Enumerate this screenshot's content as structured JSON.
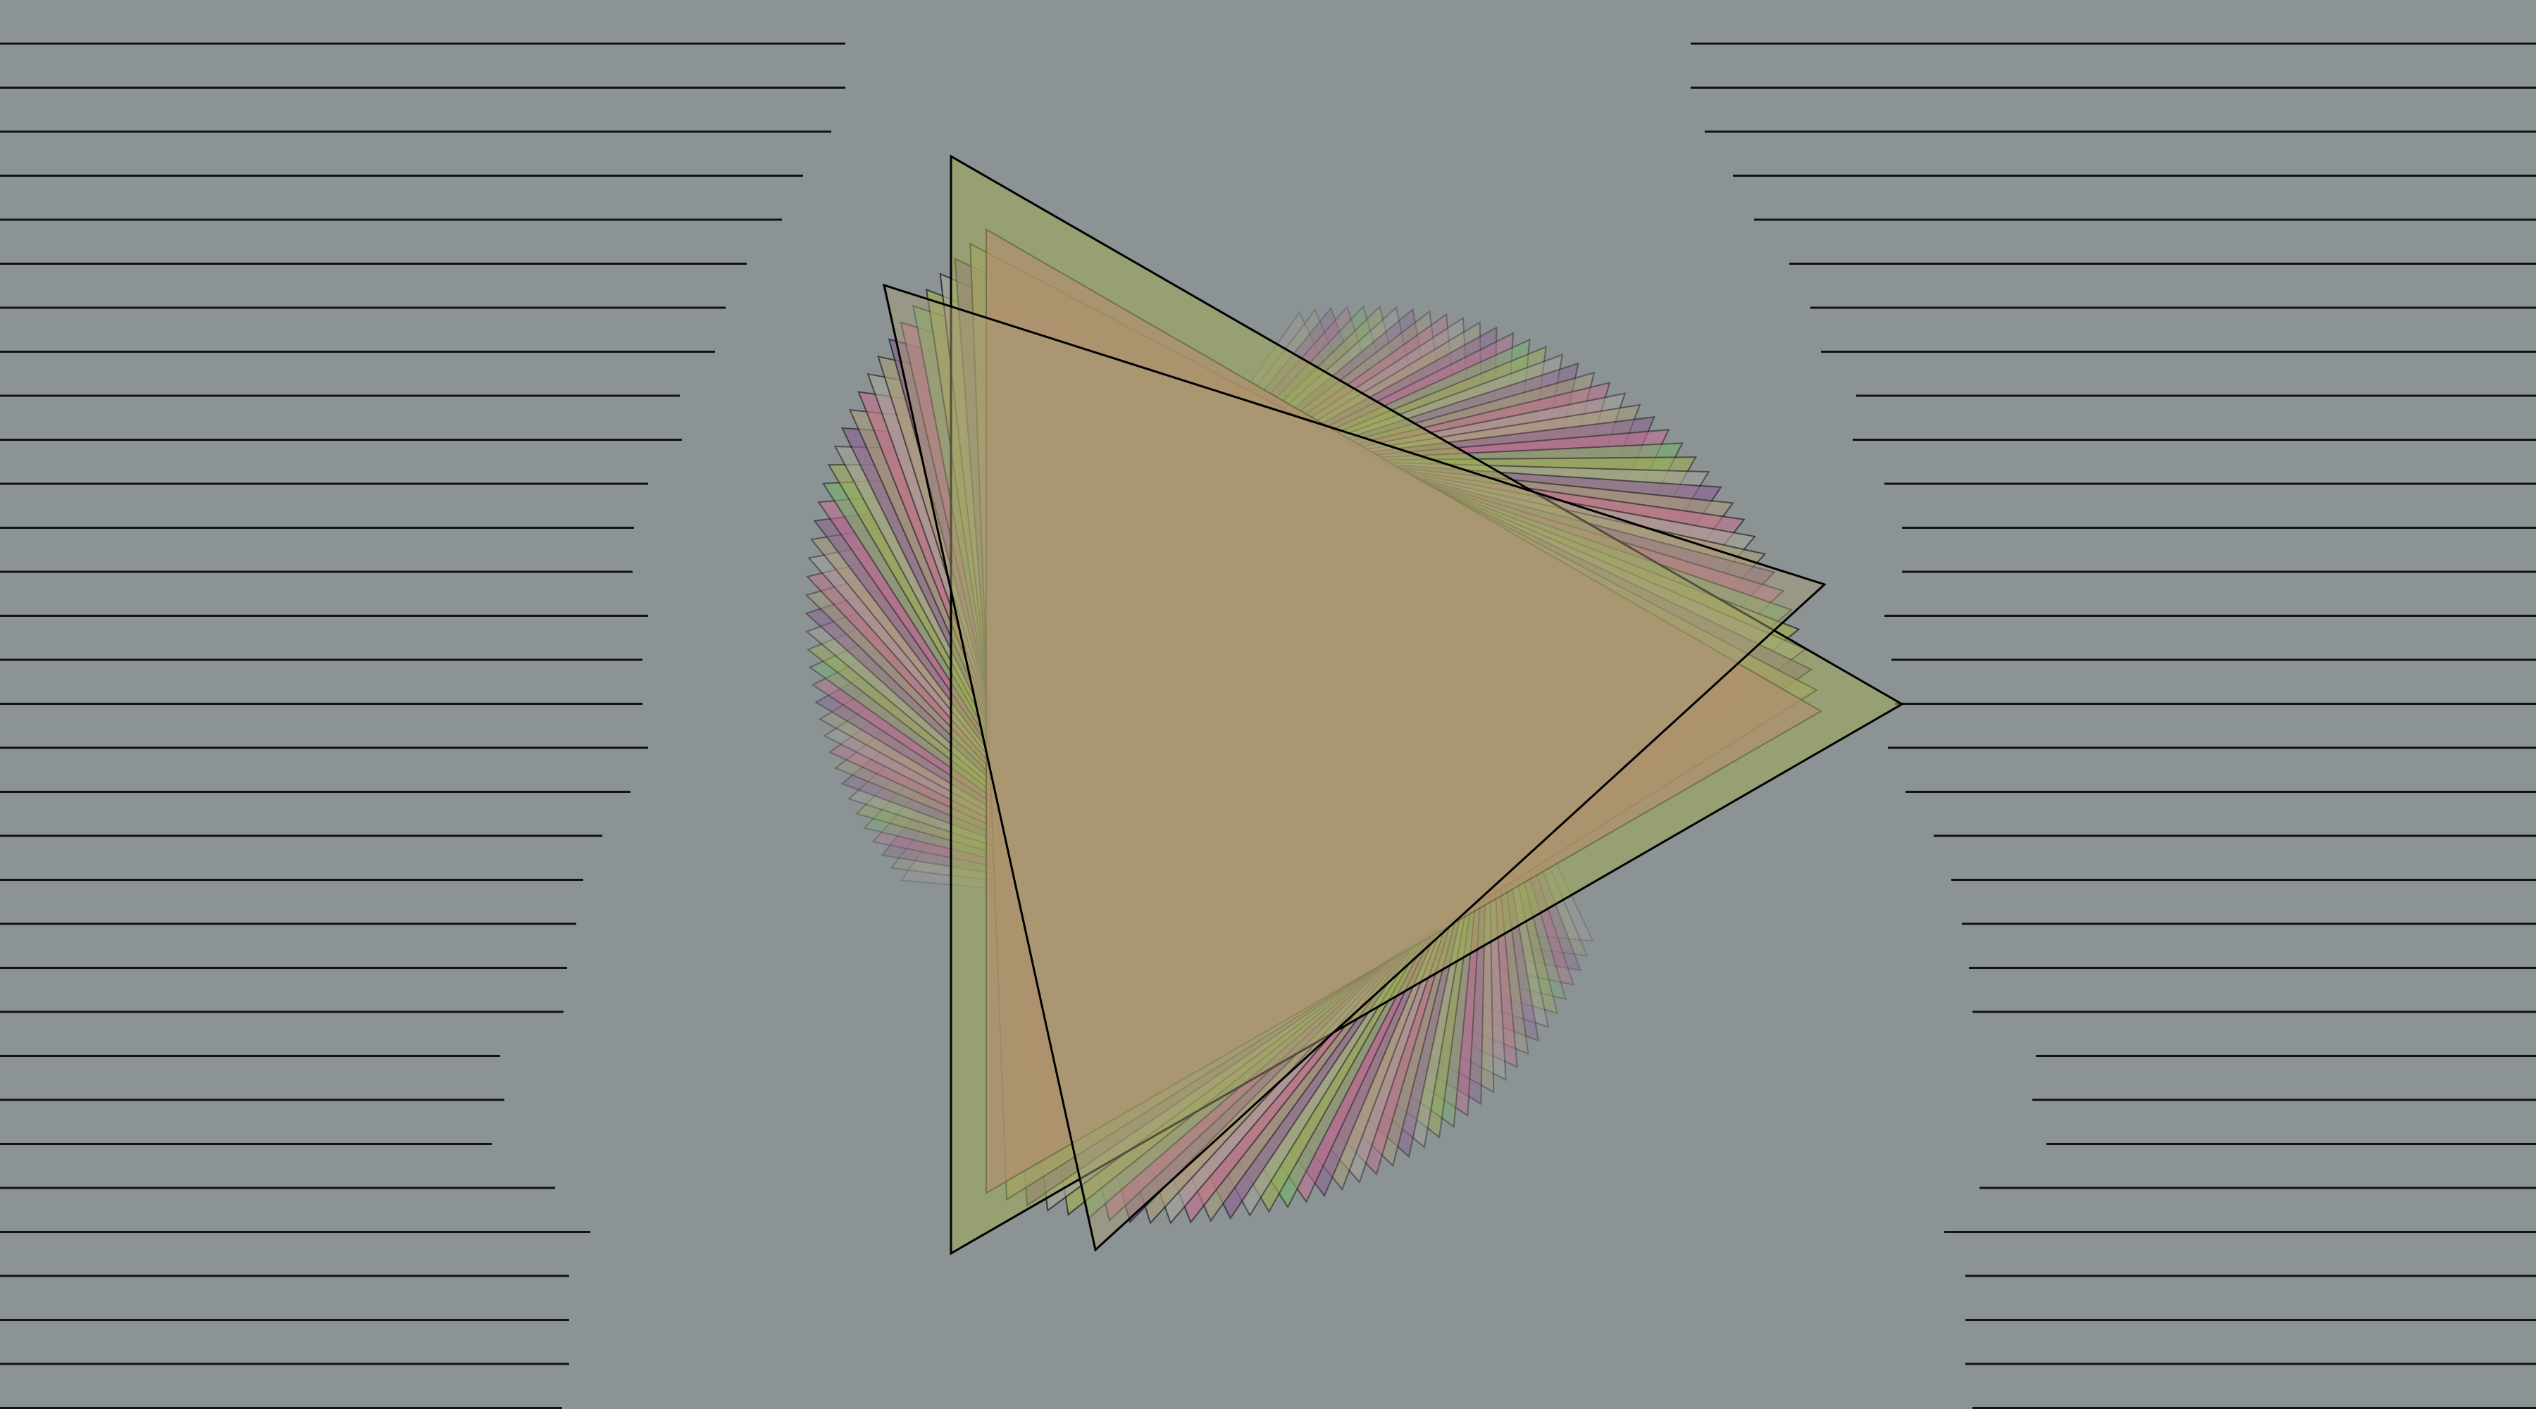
{
  "scene": {
    "background_color": "#8b9395",
    "line_color": "#111111",
    "outline_color": "#000000",
    "description_palette": {
      "green": "#76b46a",
      "olive": "#a0ac55",
      "purple": "#8a5f8f",
      "pink": "#c26f8f",
      "tan": "#a89b78",
      "grey": "#a6a49a"
    },
    "stripe_count": 32,
    "fan_layer_count": 40
  }
}
